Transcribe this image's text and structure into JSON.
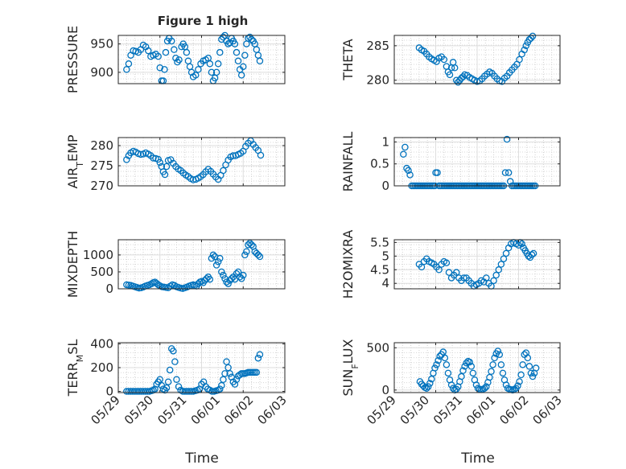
{
  "figure_title": "Figure 1 high",
  "x_tick_labels": [
    "05/29",
    "05/30",
    "05/31",
    "06/01",
    "06/02",
    "06/03"
  ],
  "x_axis_label": "Time",
  "marker_color": "#0072BD",
  "chart_data": [
    {
      "type": "scatter",
      "ylabel": "PRESSURE",
      "ylim": [
        880,
        965
      ],
      "yticks": [
        900,
        950
      ],
      "xlim": [
        0,
        4
      ],
      "x": [
        0.2,
        0.25,
        0.3,
        0.36,
        0.42,
        0.48,
        0.54,
        0.6,
        0.66,
        0.72,
        0.78,
        0.84,
        0.9,
        0.96,
        1.0,
        1.04,
        1.08,
        1.11,
        1.14,
        1.18,
        1.22,
        1.28,
        1.34,
        1.38,
        1.42,
        1.46,
        1.52,
        1.56,
        1.6,
        1.64,
        1.68,
        1.72,
        1.76,
        1.8,
        1.86,
        1.92,
        1.98,
        2.04,
        2.1,
        2.16,
        2.2,
        2.24,
        2.28,
        2.32,
        2.36,
        2.4,
        2.44,
        2.48,
        2.52,
        2.56,
        2.6,
        2.64,
        2.68,
        2.72,
        2.76,
        2.8,
        2.84,
        2.88,
        2.92,
        2.96,
        3.0,
        3.04,
        3.08,
        3.12,
        3.16,
        3.2,
        3.24,
        3.28,
        3.32,
        3.36,
        3.4
      ],
      "y": [
        905,
        915,
        930,
        938,
        937,
        935,
        940,
        948,
        945,
        938,
        928,
        930,
        932,
        928,
        908,
        885,
        885,
        905,
        935,
        955,
        960,
        955,
        940,
        925,
        918,
        922,
        945,
        950,
        945,
        935,
        920,
        910,
        900,
        892,
        895,
        905,
        915,
        920,
        922,
        925,
        915,
        900,
        885,
        890,
        900,
        915,
        935,
        958,
        962,
        965,
        955,
        950,
        952,
        960,
        955,
        950,
        935,
        920,
        905,
        895,
        910,
        930,
        950,
        960,
        962,
        958,
        955,
        950,
        940,
        930,
        920
      ]
    },
    {
      "type": "scatter",
      "ylabel": "THETA",
      "ylim": [
        279.5,
        286.5
      ],
      "yticks": [
        280,
        285
      ],
      "xlim": [
        0,
        4
      ],
      "x": [
        0.6,
        0.66,
        0.72,
        0.78,
        0.84,
        0.9,
        0.96,
        1.02,
        1.08,
        1.14,
        1.2,
        1.26,
        1.3,
        1.34,
        1.38,
        1.42,
        1.46,
        1.5,
        1.54,
        1.58,
        1.62,
        1.66,
        1.7,
        1.76,
        1.82,
        1.88,
        1.94,
        2.0,
        2.06,
        2.12,
        2.18,
        2.24,
        2.3,
        2.36,
        2.42,
        2.48,
        2.54,
        2.6,
        2.66,
        2.72,
        2.78,
        2.84,
        2.9,
        2.96,
        3.02,
        3.08,
        3.14,
        3.18,
        3.22,
        3.26,
        3.3,
        3.34
      ],
      "y": [
        284.7,
        284.4,
        284.2,
        283.8,
        283.4,
        283.1,
        282.9,
        282.7,
        283.2,
        283.4,
        283.0,
        282.0,
        281.2,
        280.8,
        281.8,
        282.6,
        281.8,
        280.0,
        279.7,
        280.0,
        280.3,
        280.5,
        280.8,
        280.7,
        280.4,
        280.2,
        280.0,
        279.8,
        279.9,
        280.2,
        280.6,
        280.9,
        281.2,
        281.0,
        280.6,
        280.2,
        279.9,
        279.8,
        280.3,
        280.6,
        281.1,
        281.5,
        281.9,
        282.3,
        283.0,
        283.8,
        284.4,
        285.0,
        285.5,
        285.9,
        286.1,
        286.4
      ]
    },
    {
      "type": "scatter",
      "ylabel_parts": [
        "AIR",
        "T",
        "EMP"
      ],
      "ylim": [
        270,
        282
      ],
      "yticks": [
        270,
        275,
        280
      ],
      "xlim": [
        0,
        4
      ],
      "x": [
        0.2,
        0.25,
        0.3,
        0.36,
        0.42,
        0.48,
        0.54,
        0.6,
        0.66,
        0.72,
        0.78,
        0.84,
        0.9,
        0.96,
        1.0,
        1.04,
        1.08,
        1.12,
        1.16,
        1.2,
        1.26,
        1.32,
        1.38,
        1.44,
        1.5,
        1.56,
        1.62,
        1.68,
        1.74,
        1.8,
        1.86,
        1.92,
        1.98,
        2.04,
        2.1,
        2.16,
        2.22,
        2.28,
        2.34,
        2.4,
        2.46,
        2.52,
        2.58,
        2.64,
        2.7,
        2.76,
        2.82,
        2.88,
        2.94,
        3.0,
        3.06,
        3.12,
        3.18,
        3.24,
        3.3,
        3.36,
        3.42
      ],
      "y": [
        276.5,
        277.5,
        278.2,
        278.6,
        278.4,
        278.0,
        277.8,
        277.9,
        278.2,
        277.9,
        277.5,
        276.9,
        276.8,
        276.6,
        275.8,
        274.8,
        273.5,
        272.8,
        274.8,
        276.3,
        276.5,
        275.6,
        274.8,
        274.2,
        273.8,
        273.2,
        272.7,
        272.3,
        271.8,
        271.5,
        271.6,
        271.9,
        272.3,
        272.8,
        273.5,
        274.1,
        273.6,
        272.9,
        272.2,
        271.6,
        272.6,
        273.8,
        275.2,
        276.4,
        277.2,
        277.5,
        277.5,
        277.8,
        278.1,
        278.6,
        279.8,
        280.6,
        281.2,
        280.3,
        279.5,
        278.8,
        277.6
      ]
    },
    {
      "type": "scatter",
      "ylabel": "RAINFALL",
      "ylim": [
        0,
        1.1
      ],
      "yticks": [
        0,
        0.5,
        1
      ],
      "ytick_labels": [
        "0",
        "0.5",
        "1"
      ],
      "xlim": [
        0,
        4
      ],
      "x": [
        0.22,
        0.26,
        0.3,
        0.34,
        0.38,
        0.42,
        0.46,
        0.5,
        0.54,
        0.58,
        0.62,
        0.66,
        0.7,
        0.74,
        0.78,
        0.82,
        0.86,
        0.9,
        0.94,
        0.98,
        1.0,
        1.04,
        1.08,
        1.12,
        1.16,
        1.2,
        1.24,
        1.28,
        1.32,
        1.36,
        1.4,
        1.44,
        1.48,
        1.52,
        1.56,
        1.6,
        1.64,
        1.68,
        1.72,
        1.76,
        1.8,
        1.84,
        1.88,
        1.92,
        1.96,
        2.0,
        2.04,
        2.08,
        2.12,
        2.16,
        2.2,
        2.24,
        2.28,
        2.32,
        2.36,
        2.4,
        2.44,
        2.48,
        2.52,
        2.56,
        2.6,
        2.64,
        2.68,
        2.72,
        2.76,
        2.8,
        2.84,
        2.88,
        2.92,
        2.96,
        3.0,
        3.04,
        3.08,
        3.12,
        3.16,
        3.2,
        3.24,
        3.28,
        3.32,
        3.36,
        3.4
      ],
      "y": [
        0.72,
        0.88,
        0.4,
        0.35,
        0.25,
        0,
        0,
        0,
        0,
        0,
        0,
        0,
        0,
        0,
        0,
        0,
        0,
        0,
        0,
        0,
        0.3,
        0.3,
        0,
        0,
        0,
        0,
        0,
        0,
        0,
        0,
        0,
        0,
        0,
        0,
        0,
        0,
        0,
        0,
        0,
        0,
        0,
        0,
        0,
        0,
        0,
        0,
        0,
        0,
        0,
        0,
        0,
        0,
        0,
        0,
        0,
        0,
        0,
        0,
        0,
        0,
        0,
        0,
        0.3,
        1.06,
        0.3,
        0.1,
        0,
        0,
        0,
        0,
        0,
        0,
        0,
        0,
        0,
        0,
        0,
        0,
        0,
        0,
        0
      ]
    },
    {
      "type": "scatter",
      "ylabel": "MIXDEPTH",
      "ylim": [
        0,
        1450
      ],
      "yticks": [
        0,
        500,
        1000
      ],
      "xlim": [
        0,
        4
      ],
      "x": [
        0.2,
        0.25,
        0.3,
        0.35,
        0.4,
        0.45,
        0.5,
        0.55,
        0.6,
        0.65,
        0.7,
        0.75,
        0.8,
        0.84,
        0.88,
        0.92,
        0.96,
        1.0,
        1.05,
        1.1,
        1.15,
        1.2,
        1.25,
        1.3,
        1.35,
        1.4,
        1.45,
        1.5,
        1.55,
        1.6,
        1.65,
        1.7,
        1.75,
        1.8,
        1.84,
        1.88,
        1.92,
        1.96,
        2.0,
        2.04,
        2.08,
        2.12,
        2.16,
        2.2,
        2.24,
        2.28,
        2.32,
        2.36,
        2.4,
        2.44,
        2.48,
        2.52,
        2.56,
        2.6,
        2.64,
        2.68,
        2.72,
        2.76,
        2.8,
        2.84,
        2.88,
        2.92,
        2.96,
        3.0,
        3.04,
        3.08,
        3.12,
        3.16,
        3.2,
        3.24,
        3.28,
        3.32,
        3.36,
        3.4
      ],
      "y": [
        120,
        110,
        100,
        80,
        60,
        40,
        20,
        30,
        50,
        80,
        100,
        120,
        150,
        180,
        200,
        160,
        120,
        90,
        60,
        50,
        40,
        30,
        80,
        120,
        100,
        60,
        40,
        20,
        10,
        30,
        50,
        80,
        100,
        120,
        100,
        80,
        150,
        200,
        220,
        180,
        250,
        300,
        350,
        280,
        900,
        1000,
        950,
        700,
        800,
        900,
        500,
        400,
        300,
        200,
        150,
        250,
        300,
        350,
        280,
        450,
        500,
        350,
        300,
        400,
        1000,
        1100,
        1300,
        1350,
        1300,
        1250,
        1100,
        1050,
        1000,
        950
      ]
    },
    {
      "type": "scatter",
      "ylabel": "H2OMIXRA",
      "ylim": [
        3.8,
        5.6
      ],
      "yticks": [
        4,
        4.5,
        5,
        5.5
      ],
      "ytick_labels": [
        "4",
        "4.5",
        "5",
        "5.5"
      ],
      "xlim": [
        0,
        4
      ],
      "x": [
        0.6,
        0.66,
        0.72,
        0.78,
        0.84,
        0.9,
        0.96,
        1.02,
        1.08,
        1.14,
        1.2,
        1.26,
        1.32,
        1.38,
        1.44,
        1.5,
        1.56,
        1.62,
        1.68,
        1.74,
        1.8,
        1.86,
        1.92,
        1.98,
        2.04,
        2.1,
        2.16,
        2.22,
        2.28,
        2.34,
        2.4,
        2.46,
        2.52,
        2.58,
        2.64,
        2.7,
        2.76,
        2.82,
        2.88,
        2.94,
        3.0,
        3.04,
        3.08,
        3.12,
        3.16,
        3.2,
        3.24,
        3.28,
        3.32,
        3.36
      ],
      "y": [
        4.7,
        4.6,
        4.8,
        4.9,
        4.8,
        4.75,
        4.7,
        4.6,
        4.5,
        4.7,
        4.8,
        4.75,
        4.4,
        4.2,
        4.3,
        4.4,
        4.2,
        4.1,
        4.2,
        4.2,
        4.1,
        4.0,
        3.9,
        3.95,
        4.0,
        4.1,
        4.05,
        4.2,
        4.0,
        3.9,
        4.1,
        4.3,
        4.5,
        4.7,
        4.9,
        5.1,
        5.3,
        5.45,
        5.5,
        5.45,
        5.4,
        5.5,
        5.45,
        5.3,
        5.2,
        5.1,
        5.0,
        4.95,
        5.05,
        5.1
      ]
    },
    {
      "type": "scatter",
      "ylabel_parts": [
        "TERR",
        "M",
        "SL"
      ],
      "ylim": [
        -10,
        410
      ],
      "yticks": [
        0,
        200,
        400
      ],
      "xlim": [
        0,
        4
      ],
      "x": [
        0.2,
        0.25,
        0.3,
        0.35,
        0.4,
        0.45,
        0.5,
        0.55,
        0.6,
        0.65,
        0.7,
        0.75,
        0.8,
        0.84,
        0.88,
        0.92,
        0.96,
        1.0,
        1.04,
        1.08,
        1.12,
        1.16,
        1.2,
        1.24,
        1.28,
        1.32,
        1.36,
        1.4,
        1.45,
        1.5,
        1.55,
        1.6,
        1.65,
        1.7,
        1.75,
        1.8,
        1.85,
        1.9,
        1.95,
        2.0,
        2.05,
        2.1,
        2.15,
        2.2,
        2.25,
        2.3,
        2.35,
        2.4,
        2.44,
        2.48,
        2.52,
        2.56,
        2.6,
        2.64,
        2.68,
        2.72,
        2.76,
        2.8,
        2.84,
        2.88,
        2.92,
        2.96,
        3.0,
        3.04,
        3.08,
        3.12,
        3.16,
        3.2,
        3.24,
        3.28,
        3.32,
        3.36,
        3.4
      ],
      "y": [
        0,
        0,
        0,
        0,
        0,
        0,
        0,
        0,
        0,
        0,
        0,
        0,
        5,
        10,
        20,
        60,
        80,
        100,
        50,
        20,
        10,
        30,
        80,
        180,
        360,
        340,
        250,
        100,
        40,
        10,
        0,
        0,
        0,
        0,
        0,
        0,
        5,
        10,
        20,
        60,
        80,
        40,
        20,
        10,
        0,
        0,
        5,
        10,
        20,
        50,
        100,
        150,
        250,
        200,
        150,
        120,
        80,
        60,
        100,
        130,
        140,
        150,
        150,
        150,
        155,
        160,
        160,
        160,
        160,
        160,
        160,
        280,
        310
      ]
    },
    {
      "type": "scatter",
      "ylabel_parts": [
        "SUN",
        "F",
        "LUX"
      ],
      "ylim": [
        -30,
        560
      ],
      "yticks": [
        0,
        500
      ],
      "xlim": [
        0,
        4
      ],
      "x": [
        0.62,
        0.66,
        0.7,
        0.74,
        0.78,
        0.82,
        0.86,
        0.9,
        0.94,
        0.98,
        1.02,
        1.06,
        1.1,
        1.14,
        1.18,
        1.22,
        1.26,
        1.3,
        1.34,
        1.38,
        1.42,
        1.46,
        1.5,
        1.54,
        1.58,
        1.62,
        1.66,
        1.7,
        1.74,
        1.78,
        1.82,
        1.86,
        1.9,
        1.94,
        1.98,
        2.02,
        2.06,
        2.1,
        2.14,
        2.18,
        2.22,
        2.26,
        2.3,
        2.34,
        2.38,
        2.42,
        2.46,
        2.5,
        2.54,
        2.58,
        2.62,
        2.66,
        2.7,
        2.74,
        2.78,
        2.82,
        2.86,
        2.9,
        2.94,
        2.98,
        3.02,
        3.06,
        3.1,
        3.14,
        3.18,
        3.22,
        3.26,
        3.3,
        3.34,
        3.38,
        3.42
      ],
      "y": [
        100,
        70,
        50,
        30,
        20,
        40,
        80,
        130,
        200,
        260,
        300,
        350,
        400,
        420,
        450,
        380,
        300,
        200,
        120,
        60,
        20,
        0,
        10,
        40,
        100,
        160,
        230,
        280,
        320,
        340,
        330,
        280,
        200,
        120,
        60,
        20,
        10,
        5,
        10,
        20,
        40,
        90,
        150,
        220,
        300,
        380,
        430,
        460,
        420,
        300,
        200,
        120,
        60,
        20,
        10,
        5,
        0,
        10,
        20,
        50,
        100,
        180,
        300,
        420,
        440,
        380,
        280,
        200,
        160,
        200,
        260
      ]
    }
  ]
}
